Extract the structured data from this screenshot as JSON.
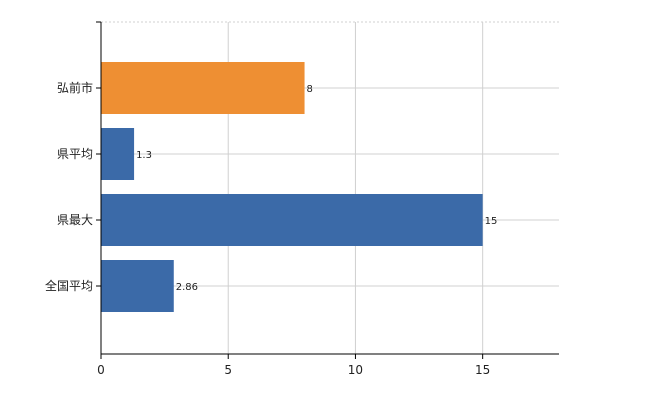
{
  "chart_data": {
    "type": "bar",
    "orientation": "horizontal",
    "categories": [
      "弘前市",
      "県平均",
      "県最大",
      "全国平均"
    ],
    "values": [
      8,
      1.3,
      15,
      2.86
    ],
    "value_labels": [
      "8",
      "1.3",
      "15",
      "2.86"
    ],
    "bar_colors": [
      "#ee8f33",
      "#3b6aa8",
      "#3b6aa8",
      "#3b6aa8"
    ],
    "xlim": [
      0,
      18
    ],
    "x_ticks": [
      0,
      5,
      10,
      15
    ],
    "x_tick_labels": [
      "0",
      "5",
      "10",
      "15"
    ],
    "grid": true,
    "legend": "none"
  }
}
